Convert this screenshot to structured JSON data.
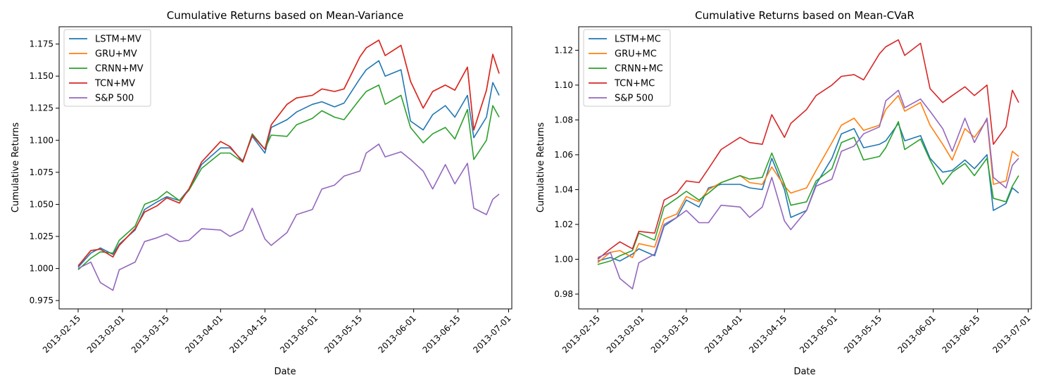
{
  "chart_data": [
    {
      "type": "line",
      "title": "Cumulative Returns based on Mean-Variance",
      "xlabel": "Date",
      "ylabel": "Cumulative Returns",
      "x_dates": [
        "2013-02-15",
        "2013-02-19",
        "2013-02-22",
        "2013-02-26",
        "2013-02-28",
        "2013-03-05",
        "2013-03-08",
        "2013-03-12",
        "2013-03-15",
        "2013-03-19",
        "2013-03-22",
        "2013-03-26",
        "2013-04-01",
        "2013-04-04",
        "2013-04-08",
        "2013-04-11",
        "2013-04-15",
        "2013-04-17",
        "2013-04-22",
        "2013-04-25",
        "2013-04-30",
        "2013-05-03",
        "2013-05-07",
        "2013-05-10",
        "2013-05-15",
        "2013-05-17",
        "2013-05-21",
        "2013-05-23",
        "2013-05-28",
        "2013-05-31",
        "2013-06-04",
        "2013-06-07",
        "2013-06-11",
        "2013-06-14",
        "2013-06-18",
        "2013-06-20",
        "2013-06-24",
        "2013-06-26",
        "2013-06-28"
      ],
      "xticks": [
        "2013-02-15",
        "2013-03-01",
        "2013-03-15",
        "2013-04-01",
        "2013-04-15",
        "2013-05-01",
        "2013-05-15",
        "2013-06-01",
        "2013-06-15",
        "2013-07-01"
      ],
      "xlim": [
        "2013-02-09",
        "2013-07-02"
      ],
      "yticks": [
        "0.975",
        "1.000",
        "1.025",
        "1.050",
        "1.075",
        "1.100",
        "1.125",
        "1.150",
        "1.175"
      ],
      "ylim": [
        0.9685,
        1.1885
      ],
      "legend_position": "upper-left",
      "series": [
        {
          "name": "LSTM+MV",
          "color": "#1f77b4",
          "values": [
            1.001,
            1.012,
            1.016,
            1.011,
            1.019,
            1.03,
            1.046,
            1.052,
            1.056,
            1.053,
            1.062,
            1.081,
            1.094,
            1.094,
            1.084,
            1.103,
            1.09,
            1.11,
            1.116,
            1.122,
            1.128,
            1.13,
            1.126,
            1.129,
            1.148,
            1.155,
            1.162,
            1.15,
            1.155,
            1.115,
            1.108,
            1.12,
            1.127,
            1.118,
            1.135,
            1.102,
            1.118,
            1.145,
            1.135
          ]
        },
        {
          "name": "GRU+MV",
          "color": "#ff7f0e",
          "values": [
            1.002,
            1.014,
            1.015,
            1.009,
            1.018,
            1.031,
            1.044,
            1.049,
            1.055,
            1.051,
            1.062,
            1.083,
            1.099,
            1.095,
            1.083,
            1.104,
            1.093,
            1.112,
            1.128,
            1.133,
            1.135,
            1.14,
            1.138,
            1.14,
            1.165,
            1.172,
            1.178,
            1.166,
            1.174,
            1.146,
            1.125,
            1.138,
            1.143,
            1.139,
            1.157,
            1.108,
            1.139,
            1.167,
            1.152
          ]
        },
        {
          "name": "CRNN+MV",
          "color": "#2ca02c",
          "values": [
            0.999,
            1.008,
            1.013,
            1.012,
            1.022,
            1.033,
            1.05,
            1.054,
            1.06,
            1.053,
            1.061,
            1.078,
            1.09,
            1.09,
            1.083,
            1.105,
            1.093,
            1.104,
            1.103,
            1.112,
            1.117,
            1.123,
            1.118,
            1.116,
            1.132,
            1.138,
            1.143,
            1.128,
            1.135,
            1.11,
            1.098,
            1.105,
            1.11,
            1.101,
            1.124,
            1.085,
            1.1,
            1.127,
            1.118
          ]
        },
        {
          "name": "TCN+MV",
          "color": "#d62728",
          "values": [
            1.002,
            1.014,
            1.015,
            1.009,
            1.018,
            1.031,
            1.044,
            1.049,
            1.055,
            1.051,
            1.062,
            1.083,
            1.099,
            1.095,
            1.083,
            1.104,
            1.093,
            1.112,
            1.128,
            1.133,
            1.135,
            1.14,
            1.138,
            1.14,
            1.165,
            1.172,
            1.178,
            1.166,
            1.174,
            1.146,
            1.125,
            1.138,
            1.143,
            1.139,
            1.157,
            1.108,
            1.139,
            1.167,
            1.152
          ]
        },
        {
          "name": "S&P 500",
          "color": "#9467bd",
          "values": [
            1.0,
            1.005,
            0.989,
            0.983,
            0.999,
            1.005,
            1.021,
            1.024,
            1.027,
            1.021,
            1.022,
            1.031,
            1.03,
            1.025,
            1.03,
            1.047,
            1.023,
            1.018,
            1.028,
            1.042,
            1.046,
            1.062,
            1.065,
            1.072,
            1.076,
            1.09,
            1.097,
            1.087,
            1.091,
            1.085,
            1.076,
            1.062,
            1.081,
            1.066,
            1.082,
            1.047,
            1.042,
            1.054,
            1.058
          ]
        }
      ]
    },
    {
      "type": "line",
      "title": "Cumulative Returns based on Mean-CVaR",
      "xlabel": "Date",
      "ylabel": "Cumulative Returns",
      "x_dates": [
        "2013-02-15",
        "2013-02-19",
        "2013-02-22",
        "2013-02-26",
        "2013-02-28",
        "2013-03-05",
        "2013-03-08",
        "2013-03-12",
        "2013-03-15",
        "2013-03-19",
        "2013-03-22",
        "2013-03-26",
        "2013-04-01",
        "2013-04-04",
        "2013-04-08",
        "2013-04-11",
        "2013-04-15",
        "2013-04-17",
        "2013-04-22",
        "2013-04-25",
        "2013-04-30",
        "2013-05-03",
        "2013-05-07",
        "2013-05-10",
        "2013-05-15",
        "2013-05-17",
        "2013-05-21",
        "2013-05-23",
        "2013-05-28",
        "2013-05-31",
        "2013-06-04",
        "2013-06-07",
        "2013-06-11",
        "2013-06-14",
        "2013-06-18",
        "2013-06-20",
        "2013-06-24",
        "2013-06-26",
        "2013-06-28"
      ],
      "xticks": [
        "2013-02-15",
        "2013-03-01",
        "2013-03-15",
        "2013-04-01",
        "2013-04-15",
        "2013-05-01",
        "2013-05-15",
        "2013-06-01",
        "2013-06-15",
        "2013-07-01"
      ],
      "xlim": [
        "2013-02-09",
        "2013-07-02"
      ],
      "yticks": [
        "0.98",
        "1.00",
        "1.02",
        "1.04",
        "1.06",
        "1.08",
        "1.10",
        "1.12"
      ],
      "ylim": [
        0.9715,
        1.1335
      ],
      "legend_position": "upper-left",
      "series": [
        {
          "name": "LSTM+MC",
          "color": "#1f77b4",
          "values": [
            0.999,
            1.001,
            0.999,
            1.003,
            1.006,
            1.002,
            1.019,
            1.024,
            1.034,
            1.03,
            1.041,
            1.043,
            1.043,
            1.041,
            1.04,
            1.058,
            1.04,
            1.024,
            1.028,
            1.043,
            1.058,
            1.072,
            1.075,
            1.064,
            1.066,
            1.068,
            1.078,
            1.068,
            1.071,
            1.058,
            1.05,
            1.051,
            1.057,
            1.052,
            1.06,
            1.028,
            1.032,
            1.041,
            1.038
          ]
        },
        {
          "name": "GRU+MC",
          "color": "#ff7f0e",
          "values": [
            0.998,
            1.004,
            1.005,
            1.001,
            1.009,
            1.007,
            1.023,
            1.026,
            1.036,
            1.033,
            1.04,
            1.044,
            1.048,
            1.044,
            1.043,
            1.053,
            1.042,
            1.038,
            1.041,
            1.051,
            1.067,
            1.077,
            1.081,
            1.074,
            1.077,
            1.086,
            1.094,
            1.085,
            1.09,
            1.077,
            1.066,
            1.057,
            1.075,
            1.07,
            1.08,
            1.043,
            1.045,
            1.062,
            1.059
          ]
        },
        {
          "name": "CRNN+MC",
          "color": "#2ca02c",
          "values": [
            0.997,
            0.999,
            1.002,
            1.005,
            1.015,
            1.011,
            1.03,
            1.035,
            1.039,
            1.034,
            1.038,
            1.044,
            1.048,
            1.046,
            1.047,
            1.061,
            1.043,
            1.031,
            1.033,
            1.045,
            1.052,
            1.067,
            1.07,
            1.057,
            1.059,
            1.064,
            1.079,
            1.063,
            1.069,
            1.057,
            1.043,
            1.05,
            1.055,
            1.048,
            1.058,
            1.035,
            1.033,
            1.042,
            1.048
          ]
        },
        {
          "name": "TCN+MC",
          "color": "#d62728",
          "values": [
            1.0,
            1.006,
            1.01,
            1.006,
            1.016,
            1.015,
            1.034,
            1.038,
            1.045,
            1.044,
            1.052,
            1.063,
            1.07,
            1.067,
            1.066,
            1.083,
            1.07,
            1.078,
            1.086,
            1.094,
            1.1,
            1.105,
            1.106,
            1.103,
            1.118,
            1.122,
            1.126,
            1.117,
            1.124,
            1.098,
            1.09,
            1.094,
            1.099,
            1.094,
            1.1,
            1.066,
            1.076,
            1.097,
            1.09
          ]
        },
        {
          "name": "S&P 500",
          "color": "#9467bd",
          "values": [
            1.001,
            1.004,
            0.989,
            0.983,
            0.998,
            1.003,
            1.02,
            1.024,
            1.028,
            1.021,
            1.021,
            1.031,
            1.03,
            1.024,
            1.03,
            1.047,
            1.022,
            1.017,
            1.028,
            1.042,
            1.046,
            1.062,
            1.065,
            1.072,
            1.076,
            1.091,
            1.097,
            1.087,
            1.092,
            1.085,
            1.075,
            1.062,
            1.081,
            1.067,
            1.081,
            1.047,
            1.041,
            1.054,
            1.058
          ]
        }
      ]
    }
  ]
}
